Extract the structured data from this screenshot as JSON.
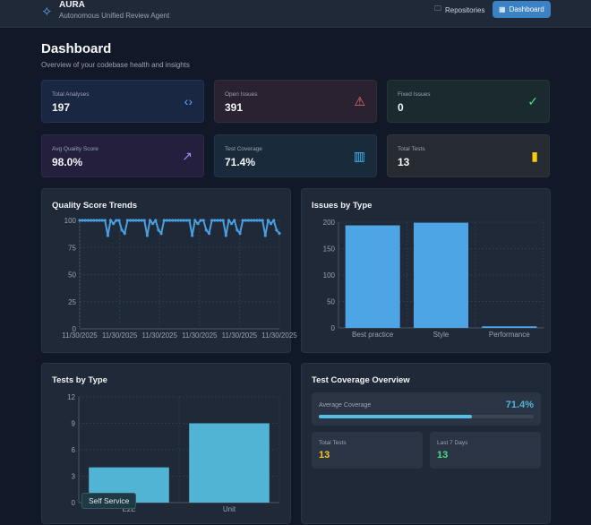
{
  "header": {
    "title": "AURA",
    "subtitle": "Autonomous Unified Review Agent",
    "nav": [
      {
        "label": "Repositories",
        "icon": "folder-icon"
      },
      {
        "label": "Dashboard",
        "icon": "grid-icon",
        "active": true
      }
    ]
  },
  "page": {
    "title": "Dashboard",
    "subtitle": "Overview of your codebase health and insights"
  },
  "stats": [
    {
      "label": "Total Analyses",
      "value": "197",
      "icon": "code-icon",
      "color": "#60a5fa",
      "bg": "#1a2742"
    },
    {
      "label": "Open Issues",
      "value": "391",
      "icon": "warning-icon",
      "color": "#f87171",
      "bg": "#2a2131"
    },
    {
      "label": "Fixed Issues",
      "value": "0",
      "icon": "check-circle-icon",
      "color": "#4ade80",
      "bg": "#1a2a2e"
    },
    {
      "label": "Avg Quality Score",
      "value": "98.0%",
      "icon": "trending-up-icon",
      "color": "#a78bfa",
      "bg": "#231f3d"
    },
    {
      "label": "Test Coverage",
      "value": "71.4%",
      "icon": "bar-chart-icon",
      "color": "#38bdf8",
      "bg": "#192a3b"
    },
    {
      "label": "Total Tests",
      "value": "13",
      "icon": "test-tube-icon",
      "color": "#facc15",
      "bg": "#262a31"
    }
  ],
  "chart_data": [
    {
      "type": "line",
      "title": "Quality Score Trends",
      "ylim": [
        0,
        100
      ],
      "yticks": [
        0,
        25,
        50,
        75,
        100
      ],
      "xtick_labels": [
        "11/30/2025",
        "11/30/2025",
        "11/30/2025",
        "11/30/2025",
        "11/30/2025",
        "11/30/2025"
      ],
      "grid": true,
      "color": "#4a9fe0",
      "values": [
        100,
        100,
        100,
        100,
        100,
        100,
        100,
        100,
        100,
        100,
        86,
        100,
        97,
        100,
        100,
        91,
        88,
        100,
        100,
        100,
        100,
        100,
        100,
        100,
        86,
        100,
        97,
        100,
        91,
        88,
        100,
        100,
        100,
        100,
        100,
        100,
        100,
        100,
        100,
        100,
        86,
        100,
        97,
        100,
        100,
        91,
        88,
        100,
        100,
        100,
        100,
        100,
        86,
        100,
        97,
        100,
        91,
        88,
        100,
        100,
        100,
        100,
        100,
        100,
        100,
        100,
        86,
        100,
        97,
        100,
        91,
        88
      ]
    },
    {
      "type": "bar",
      "title": "Issues by Type",
      "categories": [
        "Best practice",
        "Style",
        "Performance"
      ],
      "values": [
        194,
        199,
        3
      ],
      "ylim": [
        0,
        200
      ],
      "yticks": [
        0,
        50,
        100,
        150,
        200
      ],
      "color": "#4ea5e6"
    },
    {
      "type": "bar",
      "title": "Tests by Type",
      "categories": [
        "E2E",
        "Unit"
      ],
      "values": [
        4,
        9
      ],
      "ylim": [
        0,
        12
      ],
      "yticks": [
        0,
        3,
        6,
        9,
        12
      ],
      "color": "#52b4d4"
    }
  ],
  "tooltip": "Self Service",
  "coverage": {
    "title": "Test Coverage Overview",
    "avg_label": "Average Coverage",
    "avg_value": "71.4%",
    "avg_percent": 71.4,
    "total_label": "Total Tests",
    "total_value": "13",
    "last7_label": "Last 7 Days",
    "last7_value": "13"
  }
}
